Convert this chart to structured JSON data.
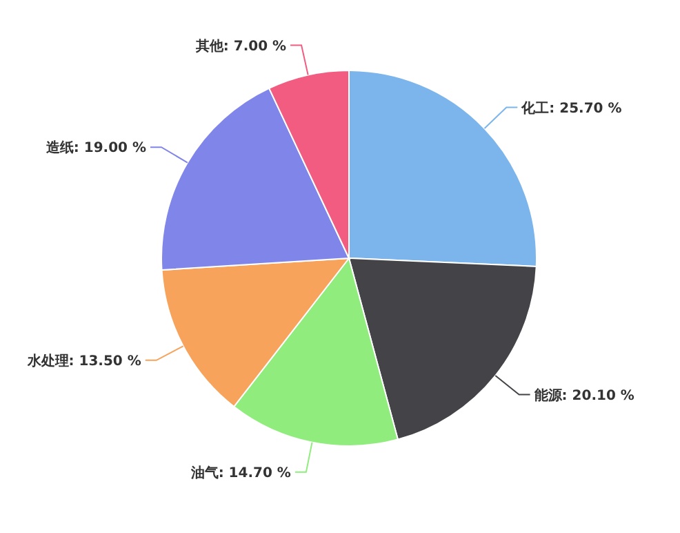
{
  "chart_data": {
    "type": "pie",
    "categories": [
      "化工",
      "能源",
      "油气",
      "水处理",
      "造纸",
      "其他"
    ],
    "values": [
      25.7,
      20.1,
      14.7,
      13.5,
      19.0,
      7.0
    ],
    "value_labels": [
      "25.70 %",
      "20.10 %",
      "14.70 %",
      "13.50 %",
      "19.00 %",
      "7.00 %"
    ],
    "colors": [
      "#7cb5ec",
      "#434348",
      "#90ed7d",
      "#f7a35c",
      "#8085e9",
      "#f15c80"
    ]
  }
}
